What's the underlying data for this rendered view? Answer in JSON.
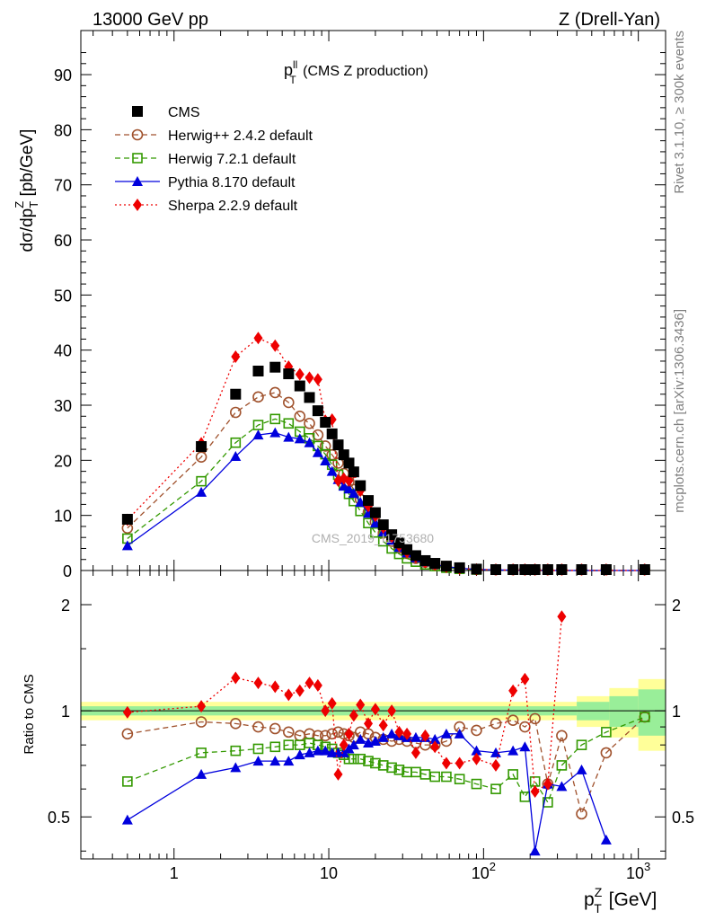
{
  "header": {
    "left": "13000 GeV pp",
    "right": "Z (Drell-Yan)"
  },
  "side_labels": {
    "rivet": "Rivet 3.1.10, ≥ 300k events",
    "source": "mcplots.cern.ch [arXiv:1306.3436]"
  },
  "watermark": "CMS_2019_I1753680",
  "main_plot": {
    "title_main": "p",
    "title_sup": "ll",
    "title_sub": "T",
    "title_rest": " (CMS Z production)",
    "ylabel": "dσ/dp",
    "ylabel_sub": "T",
    "ylabel_sup": "Z",
    "ylabel_unit": " [pb/GeV]",
    "yticks": [
      "0",
      "10",
      "20",
      "30",
      "40",
      "50",
      "60",
      "70",
      "80",
      "90"
    ]
  },
  "ratio_plot": {
    "ylabel": "Ratio to CMS",
    "yticks": [
      "0.5",
      "1",
      "2"
    ]
  },
  "xaxis": {
    "label_main": "p",
    "label_sup": "Z",
    "label_sub": "T",
    "label_unit": " [GeV]",
    "ticks": [
      {
        "base": "1",
        "exp": ""
      },
      {
        "base": "10",
        "exp": ""
      },
      {
        "base": "10",
        "exp": "2"
      },
      {
        "base": "10",
        "exp": "3"
      }
    ]
  },
  "legend": [
    {
      "label": "CMS",
      "color": "#000000",
      "marker": "square-filled",
      "line": "none"
    },
    {
      "label": "Herwig++ 2.4.2 default",
      "color": "#a0522d",
      "marker": "circle-open",
      "line": "dashed"
    },
    {
      "label": "Herwig 7.2.1 default",
      "color": "#339900",
      "marker": "square-open",
      "line": "dashed"
    },
    {
      "label": "Pythia 8.170 default",
      "color": "#0000dd",
      "marker": "triangle-filled",
      "line": "solid"
    },
    {
      "label": "Sherpa 2.2.9 default",
      "color": "#ee0000",
      "marker": "diamond-filled",
      "line": "dotted"
    }
  ],
  "chart_data": {
    "type": "scatter",
    "x_scale": "log",
    "xlim": [
      0.25,
      1500
    ],
    "ylim_main": [
      0,
      98
    ],
    "ylim_ratio": [
      0.38,
      2.5
    ],
    "x": [
      0.5,
      1.5,
      2.5,
      3.5,
      4.5,
      5.5,
      6.5,
      7.5,
      8.5,
      9.5,
      10.5,
      11.5,
      12.5,
      13.5,
      14.5,
      16,
      18,
      20,
      22.5,
      25.5,
      28.5,
      32,
      36.5,
      42,
      48.5,
      57.5,
      70,
      90,
      120,
      155,
      185,
      215,
      260,
      320,
      430,
      620,
      1100
    ],
    "series": [
      {
        "name": "CMS",
        "values": [
          9.3,
          22.5,
          32.0,
          36.2,
          36.9,
          35.7,
          33.5,
          31.4,
          29.0,
          26.9,
          24.8,
          22.8,
          21.0,
          19.5,
          17.9,
          15.4,
          12.7,
          10.5,
          8.3,
          6.5,
          5.0,
          3.8,
          2.7,
          1.8,
          1.3,
          0.8,
          0.5,
          0.25,
          0.12,
          0.06,
          0.04,
          0.025,
          0.015,
          0.008,
          0.004,
          0.0015,
          0.0003
        ]
      },
      {
        "name": "Herwig++ 2.4.2 default",
        "values": [
          7.7,
          20.6,
          28.7,
          31.5,
          32.3,
          30.5,
          28.0,
          26.7,
          24.6,
          22.6,
          21.0,
          19.5,
          17.6,
          16.1,
          14.7,
          12.9,
          10.6,
          8.8,
          6.8,
          5.3,
          4.1,
          3.1,
          2.2,
          1.5,
          1.0,
          0.7,
          0.4,
          0.2,
          0.1,
          0.05,
          0.03,
          0.02,
          0.01,
          0.006,
          0.003,
          0.001,
          0.0003
        ]
      },
      {
        "name": "Herwig 7.2.1 default",
        "values": [
          5.8,
          16.2,
          23.2,
          26.4,
          27.5,
          26.7,
          25.2,
          24.0,
          22.6,
          21.1,
          19.2,
          17.4,
          15.5,
          13.9,
          12.6,
          10.8,
          8.6,
          6.9,
          5.3,
          4.0,
          3.0,
          2.2,
          1.6,
          1.1,
          0.8,
          0.5,
          0.3,
          0.15,
          0.07,
          0.035,
          0.02,
          0.015,
          0.008,
          0.004,
          0.002,
          0.001,
          0.0003
        ]
      },
      {
        "name": "Pythia 8.170 default",
        "values": [
          4.5,
          14.2,
          20.7,
          24.6,
          25.0,
          24.2,
          23.9,
          23.2,
          21.4,
          19.9,
          18.0,
          16.5,
          15.3,
          14.8,
          14.0,
          12.4,
          10.4,
          8.6,
          7.0,
          5.5,
          4.2,
          3.2,
          2.3,
          1.6,
          1.1,
          0.7,
          0.4,
          0.2,
          0.1,
          0.05,
          0.03,
          0.02,
          0.01,
          0.005,
          0.003,
          0.001,
          0.0002
        ]
      },
      {
        "name": "Sherpa 2.2.9 default",
        "values": [
          9.2,
          23.1,
          38.8,
          42.2,
          40.8,
          37.0,
          35.6,
          35.0,
          34.7,
          27.2,
          27.4,
          16.3,
          16.7,
          16.3,
          17.8,
          14.5,
          11.7,
          9.9,
          7.8,
          6.1,
          4.5,
          3.3,
          2.4,
          1.5,
          1.05,
          0.65,
          0.35,
          0.2,
          0.1,
          0.05,
          0.035,
          0.03,
          0.015,
          0.01,
          0.004,
          0.0015,
          0.0003
        ]
      }
    ],
    "ratios": [
      {
        "name": "Herwig++ 2.4.2 default",
        "values": [
          0.86,
          0.93,
          0.92,
          0.9,
          0.89,
          0.87,
          0.85,
          0.86,
          0.85,
          0.85,
          0.86,
          0.87,
          0.86,
          0.85,
          0.84,
          0.87,
          0.86,
          0.84,
          0.83,
          0.82,
          0.83,
          0.82,
          0.81,
          0.8,
          0.8,
          0.82,
          0.9,
          0.88,
          0.92,
          0.94,
          0.9,
          0.95,
          0.62,
          0.85,
          0.51,
          0.76,
          0.96
        ]
      },
      {
        "name": "Herwig 7.2.1 default",
        "values": [
          0.63,
          0.76,
          0.77,
          0.78,
          0.79,
          0.8,
          0.8,
          0.81,
          0.8,
          0.79,
          0.78,
          0.76,
          0.75,
          0.73,
          0.73,
          0.73,
          0.72,
          0.71,
          0.7,
          0.69,
          0.68,
          0.67,
          0.67,
          0.66,
          0.65,
          0.65,
          0.64,
          0.62,
          0.6,
          0.66,
          0.57,
          0.63,
          0.55,
          0.7,
          0.8,
          0.87,
          0.96
        ]
      },
      {
        "name": "Pythia 8.170 default",
        "values": [
          0.49,
          0.66,
          0.69,
          0.72,
          0.72,
          0.72,
          0.75,
          0.76,
          0.77,
          0.77,
          0.76,
          0.76,
          0.76,
          0.78,
          0.8,
          0.83,
          0.81,
          0.82,
          0.84,
          0.86,
          0.85,
          0.84,
          0.84,
          0.84,
          0.83,
          0.86,
          0.86,
          0.77,
          0.76,
          0.77,
          0.79,
          0.4,
          0.62,
          0.61,
          0.68,
          0.43,
          null
        ]
      },
      {
        "name": "Sherpa 2.2.9 default",
        "values": [
          0.99,
          1.03,
          1.24,
          1.2,
          1.17,
          1.11,
          1.14,
          1.2,
          1.18,
          1.0,
          1.05,
          0.66,
          0.8,
          0.86,
          0.97,
          1.04,
          0.92,
          1.01,
          0.91,
          1.0,
          0.87,
          0.86,
          0.76,
          0.85,
          0.79,
          0.71,
          0.71,
          0.73,
          0.7,
          1.14,
          1.23,
          0.59,
          0.62,
          1.85,
          null,
          null,
          null
        ]
      }
    ],
    "ratio_band_inner": 0.03,
    "ratio_band_outer": 0.06
  }
}
